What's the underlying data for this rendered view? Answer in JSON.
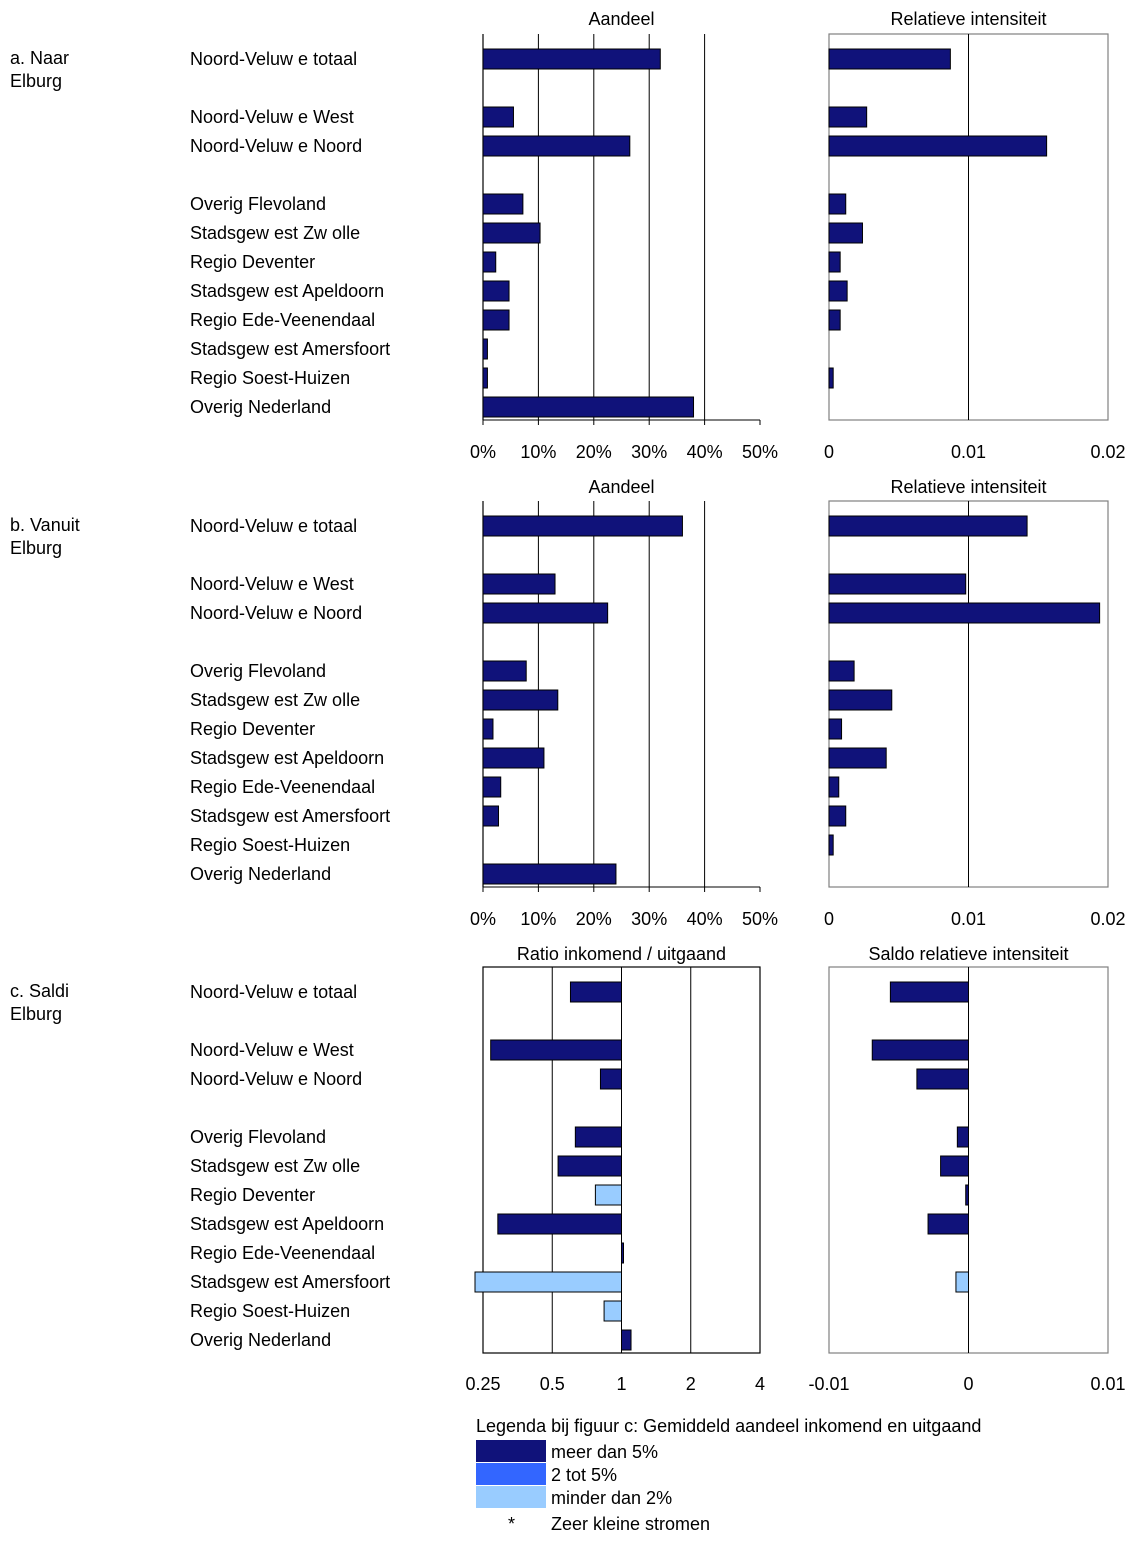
{
  "categories": [
    "Noord-Veluw e totaal",
    "Noord-Veluw e West",
    "Noord-Veluw e Noord",
    "Overig Flevoland",
    "Stadsgew est Zw olle",
    "Regio Deventer",
    "Stadsgew est Apeldoorn",
    "Regio Ede-Veenendaal",
    "Stadsgew est Amersfoort",
    "Regio Soest-Huizen",
    "Overig Nederland"
  ],
  "colors": {
    "meer_dan_5": "#10127A",
    "2_tot_5": "#3366FF",
    "minder_dan_2": "#99CCFF",
    "bar_stroke": "#000000"
  },
  "legend": {
    "title": "Legenda bij figuur c: Gemiddeld aandeel inkomend en uitgaand",
    "items": [
      {
        "label": "meer dan 5%",
        "color_key": "meer_dan_5"
      },
      {
        "label": "2 tot 5%",
        "color_key": "2_tot_5"
      },
      {
        "label": "minder dan 2%",
        "color_key": "minder_dan_2"
      }
    ],
    "star_symbol": "*",
    "star_label": "Zeer kleine stromen"
  },
  "chart_data": [
    {
      "id": "a-aandeel",
      "type": "bar",
      "orientation": "horizontal",
      "section": "a",
      "section_label_1": "a. Naar",
      "section_label_2": "Elburg",
      "title": "Aandeel",
      "xlim": [
        0,
        0.5
      ],
      "ticks": [
        0,
        0.1,
        0.2,
        0.3,
        0.4,
        0.5
      ],
      "tick_labels": [
        "0%",
        "10%",
        "20%",
        "30%",
        "40%",
        "50%"
      ],
      "values": [
        0.32,
        0.055,
        0.265,
        0.072,
        0.103,
        0.023,
        0.047,
        0.047,
        0.008,
        0.008,
        0.38
      ]
    },
    {
      "id": "a-intensiteit",
      "type": "bar",
      "orientation": "horizontal",
      "section": "a",
      "title": "Relatieve intensiteit",
      "xlim": [
        0,
        0.02
      ],
      "ticks": [
        0,
        0.01,
        0.02
      ],
      "tick_labels": [
        "0",
        "0.01",
        "0.02"
      ],
      "values": [
        0.0087,
        0.0027,
        0.0156,
        0.0012,
        0.0024,
        0.0008,
        0.0013,
        0.0008,
        0,
        0.0003,
        0
      ]
    },
    {
      "id": "b-aandeel",
      "type": "bar",
      "orientation": "horizontal",
      "section": "b",
      "section_label_1": "b. Vanuit",
      "section_label_2": "Elburg",
      "title": "Aandeel",
      "xlim": [
        0,
        0.5
      ],
      "ticks": [
        0,
        0.1,
        0.2,
        0.3,
        0.4,
        0.5
      ],
      "tick_labels": [
        "0%",
        "10%",
        "20%",
        "30%",
        "40%",
        "50%"
      ],
      "values": [
        0.36,
        0.13,
        0.225,
        0.078,
        0.135,
        0.018,
        0.11,
        0.032,
        0.028,
        0,
        0.24
      ]
    },
    {
      "id": "b-intensiteit",
      "type": "bar",
      "orientation": "horizontal",
      "section": "b",
      "title": "Relatieve intensiteit",
      "xlim": [
        0,
        0.02
      ],
      "ticks": [
        0,
        0.01,
        0.02
      ],
      "tick_labels": [
        "0",
        "0.01",
        "0.02"
      ],
      "values": [
        0.0142,
        0.0098,
        0.0194,
        0.0018,
        0.0045,
        0.0009,
        0.0041,
        0.0007,
        0.0012,
        0.0003,
        0
      ]
    },
    {
      "id": "c-ratio",
      "type": "bar",
      "orientation": "horizontal",
      "section": "c",
      "section_label_1": "c. Saldi",
      "section_label_2": "Elburg",
      "scale": "log2",
      "baseline": 1,
      "title": "Ratio inkomend / uitgaand",
      "xlim": [
        0.25,
        4
      ],
      "ticks": [
        0.25,
        0.5,
        1,
        2,
        4
      ],
      "tick_labels": [
        "0.25",
        "0.5",
        "1",
        "2",
        "4"
      ],
      "values": [
        0.6,
        0.27,
        0.81,
        0.63,
        0.53,
        0.77,
        0.29,
        1.02,
        0.24,
        0.84,
        1.1
      ],
      "color_keys": [
        "meer_dan_5",
        "meer_dan_5",
        "meer_dan_5",
        "meer_dan_5",
        "meer_dan_5",
        "minder_dan_2",
        "meer_dan_5",
        "meer_dan_5",
        "minder_dan_2",
        "minder_dan_2",
        "meer_dan_5"
      ]
    },
    {
      "id": "c-saldo",
      "type": "bar",
      "orientation": "horizontal",
      "section": "c",
      "title": "Saldo relatieve intensiteit",
      "xlim": [
        -0.01,
        0.01
      ],
      "ticks": [
        -0.01,
        0,
        0.01
      ],
      "tick_labels": [
        "-0.01",
        "0",
        "0.01"
      ],
      "values": [
        -0.0056,
        -0.0069,
        -0.0037,
        -0.0008,
        -0.002,
        -0.0002,
        -0.0029,
        0,
        -0.0009,
        0,
        0
      ],
      "color_keys": [
        "meer_dan_5",
        "meer_dan_5",
        "meer_dan_5",
        "meer_dan_5",
        "meer_dan_5",
        "meer_dan_5",
        "meer_dan_5",
        "meer_dan_5",
        "minder_dan_2",
        "minder_dan_2",
        "meer_dan_5"
      ]
    }
  ]
}
